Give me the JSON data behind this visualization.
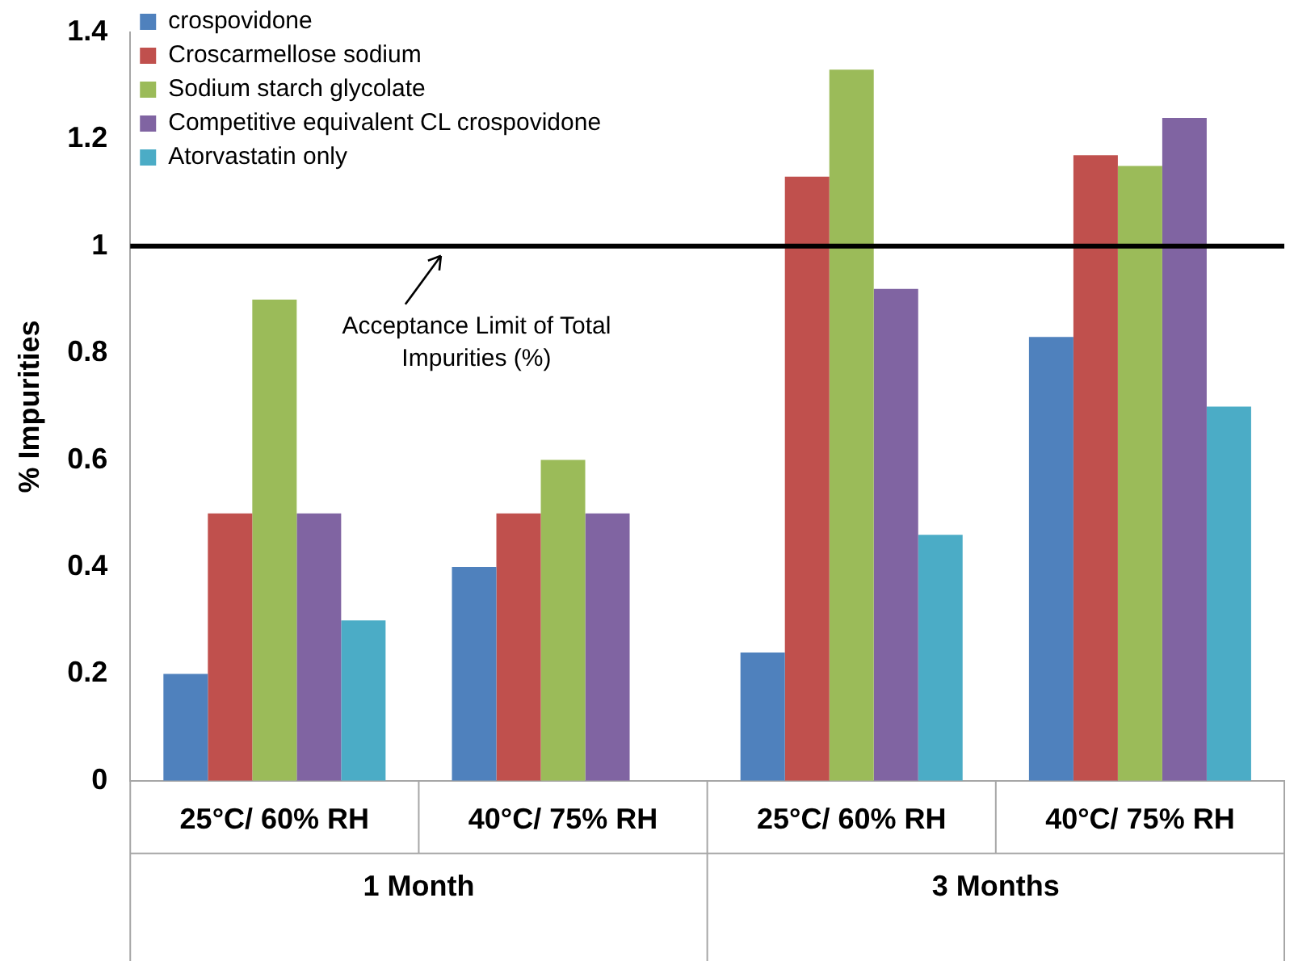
{
  "chart_data": {
    "type": "bar",
    "ylabel": "% Impurities",
    "categories": [
      "25°C/ 60% RH",
      "40°C/ 75% RH",
      "25°C/ 60% RH",
      "40°C/ 75% RH"
    ],
    "series": [
      {
        "name": "crospovidone",
        "color": "#4f81bd",
        "values": [
          0.2,
          0.4,
          0.24,
          0.83
        ]
      },
      {
        "name": "Croscarmellose sodium",
        "color": "#c0504d",
        "values": [
          0.5,
          0.5,
          1.13,
          1.17
        ]
      },
      {
        "name": "Sodium starch glycolate",
        "color": "#9bbb59",
        "values": [
          0.9,
          0.6,
          1.33,
          1.15
        ]
      },
      {
        "name": "Competitive equivalent CL crospovidone",
        "color": "#8064a2",
        "values": [
          0.5,
          0.5,
          0.92,
          1.24
        ]
      },
      {
        "name": "Atorvastatin only",
        "color": "#4bacc6",
        "values": [
          0.3,
          null,
          0.46,
          0.7
        ]
      }
    ],
    "ylim": [
      0,
      1.4
    ],
    "yticks": [
      0,
      0.2,
      0.4,
      0.6,
      0.8,
      1,
      1.2,
      1.4
    ],
    "ref_lines": [
      {
        "axis": "y",
        "value": 1,
        "label": "Acceptance Limit of Total Impurities (%)",
        "color": "#000000"
      }
    ],
    "annotations": [
      "1 Month",
      "3 Months"
    ],
    "grid": false,
    "legend": "top left"
  }
}
